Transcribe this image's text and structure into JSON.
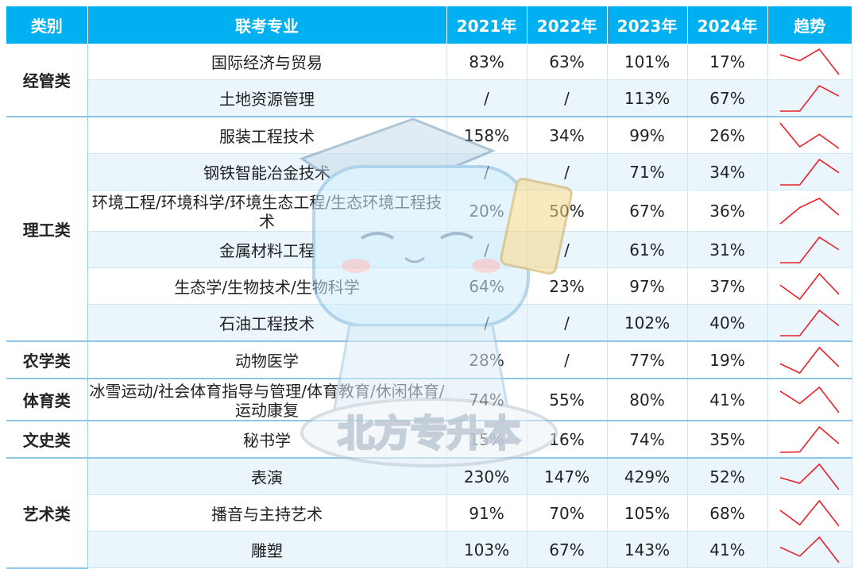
{
  "header": {
    "category": "类别",
    "major": "联考专业",
    "y2021": "2021年",
    "y2022": "2022年",
    "y2023": "2023年",
    "y2024": "2024年",
    "trend": "趋势"
  },
  "categories": {
    "jingguan": "经管类",
    "ligong": "理工类",
    "nongxue": "农学类",
    "tiyu": "体育类",
    "wenshi": "文史类",
    "yishu": "艺术类"
  },
  "rows": [
    {
      "major": "国际经济与贸易",
      "v2021": "83%",
      "v2022": "63%",
      "v2023": "101%",
      "v2024": "17%"
    },
    {
      "major": "土地资源管理",
      "v2021": "/",
      "v2022": "/",
      "v2023": "113%",
      "v2024": "67%"
    },
    {
      "major": "服装工程技术",
      "v2021": "158%",
      "v2022": "34%",
      "v2023": "99%",
      "v2024": "26%"
    },
    {
      "major": "钢铁智能冶金技术",
      "v2021": "/",
      "v2022": "/",
      "v2023": "71%",
      "v2024": "34%"
    },
    {
      "major": "环境工程/环境科学/环境生态工程/生态环境工程技术",
      "v2021": "20%",
      "v2022": "50%",
      "v2023": "67%",
      "v2024": "36%"
    },
    {
      "major": "金属材料工程",
      "v2021": "/",
      "v2022": "/",
      "v2023": "61%",
      "v2024": "31%"
    },
    {
      "major": "生态学/生物技术/生物科学",
      "v2021": "64%",
      "v2022": "23%",
      "v2023": "97%",
      "v2024": "37%"
    },
    {
      "major": "石油工程技术",
      "v2021": "/",
      "v2022": "/",
      "v2023": "102%",
      "v2024": "40%"
    },
    {
      "major": "动物医学",
      "v2021": "28%",
      "v2022": "/",
      "v2023": "77%",
      "v2024": "19%"
    },
    {
      "major": "冰雪运动/社会体育指导与管理/体育教育/休闲体育/运动康复",
      "v2021": "74%",
      "v2022": "55%",
      "v2023": "80%",
      "v2024": "41%"
    },
    {
      "major": "秘书学",
      "v2021": "15%",
      "v2022": "16%",
      "v2023": "74%",
      "v2024": "35%"
    },
    {
      "major": "表演",
      "v2021": "230%",
      "v2022": "147%",
      "v2023": "429%",
      "v2024": "52%"
    },
    {
      "major": "播音与主持艺术",
      "v2021": "91%",
      "v2022": "70%",
      "v2023": "105%",
      "v2024": "68%"
    },
    {
      "major": "雕塑",
      "v2021": "103%",
      "v2022": "67%",
      "v2023": "143%",
      "v2024": "41%"
    }
  ],
  "watermark": "北方专升本",
  "colors": {
    "header": "#00b0f0",
    "spark": "#e8202a",
    "alt_row": "#eaf5fc"
  }
}
